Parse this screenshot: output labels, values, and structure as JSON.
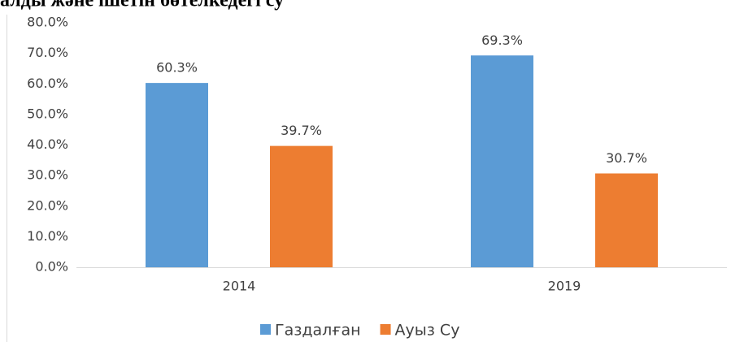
{
  "chart_data": {
    "type": "bar",
    "title": "алды және ішетін бөтелкедегі су",
    "categories": [
      "2014",
      "2019"
    ],
    "series": [
      {
        "name": "Газдалған",
        "color": "#5b9bd5",
        "values": [
          60.3,
          69.3
        ],
        "value_labels": [
          "60.3%",
          "69.3%"
        ]
      },
      {
        "name": "Ауыз Су",
        "color": "#ed7d31",
        "values": [
          39.7,
          30.7
        ],
        "value_labels": [
          "39.7%",
          "30.7%"
        ]
      }
    ],
    "ylim": [
      0,
      80
    ],
    "yticks": [
      {
        "value": 0,
        "label": "0.0%"
      },
      {
        "value": 10,
        "label": "10.0%"
      },
      {
        "value": 20,
        "label": "20.0%"
      },
      {
        "value": 30,
        "label": "30.0%"
      },
      {
        "value": 40,
        "label": "40.0%"
      },
      {
        "value": 50,
        "label": "50.0%"
      },
      {
        "value": 60,
        "label": "60.0%"
      },
      {
        "value": 70,
        "label": "70.0%"
      },
      {
        "value": 80,
        "label": "80.0%"
      }
    ],
    "grid": false,
    "legend": "bottom"
  }
}
